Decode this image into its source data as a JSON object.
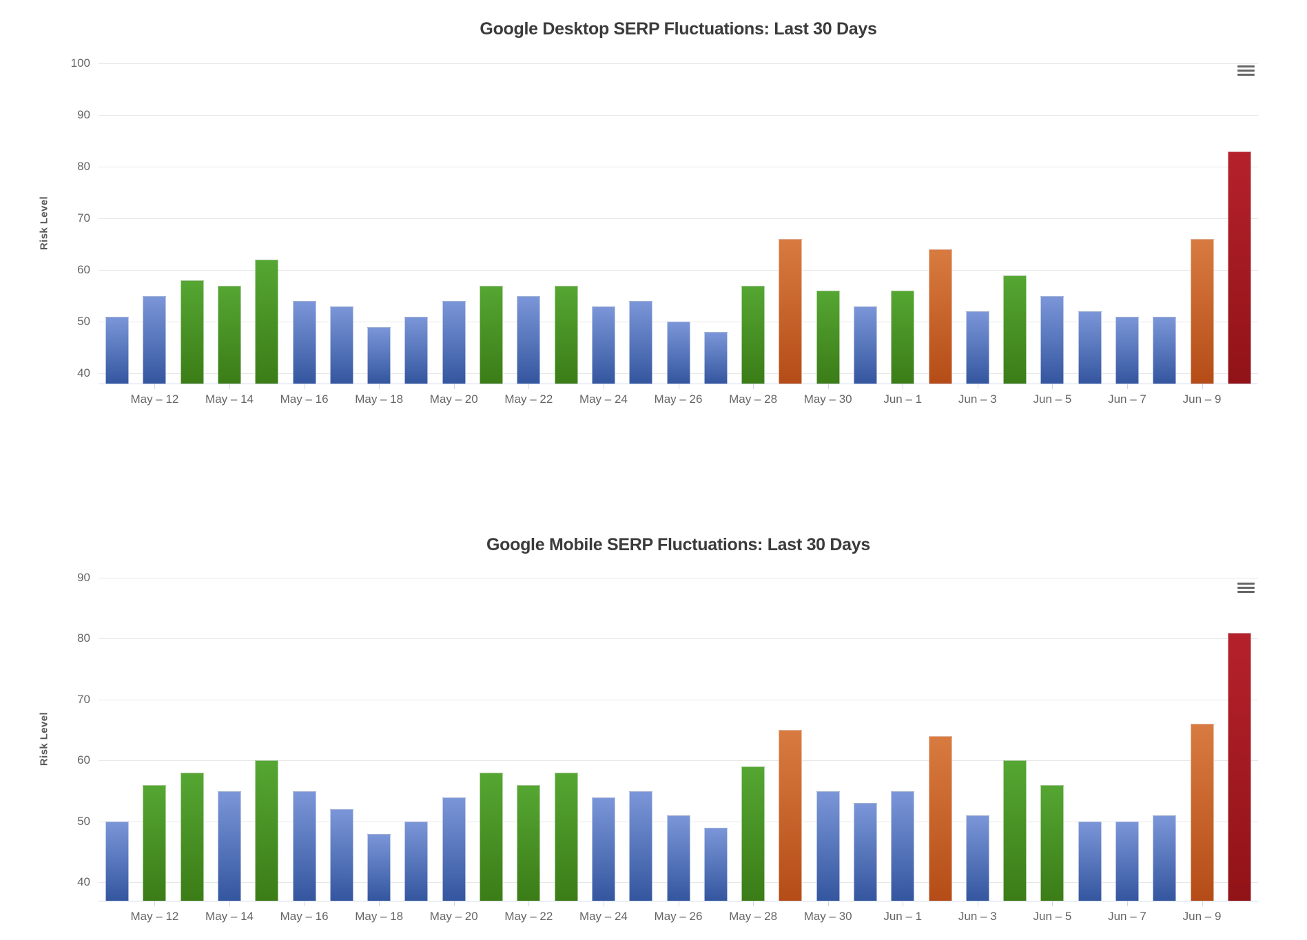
{
  "page": {
    "background": "#ffffff"
  },
  "colors": {
    "blue": {
      "top": "#7b96d8",
      "bottom": "#34569f"
    },
    "green": {
      "top": "#55a632",
      "bottom": "#3b7c17"
    },
    "orange": {
      "top": "#d87b40",
      "bottom": "#b54c17"
    },
    "darkred": {
      "top": "#b5212b",
      "bottom": "#911317"
    }
  },
  "charts": [
    {
      "title": "Google Desktop SERP Fluctuations: Last 30 Days",
      "menu_icon": "hamburger-icon",
      "chart_data": {
        "type": "bar",
        "title": "Google Desktop SERP Fluctuations: Last 30 Days",
        "xlabel": "",
        "ylabel": "Risk Level",
        "ylim": [
          38,
          100
        ],
        "y_ticks": [
          100,
          90,
          80,
          70,
          60,
          50,
          40
        ],
        "grid": true,
        "legend": false,
        "x_tick_labels": [
          "May – 12",
          "May – 14",
          "May – 16",
          "May – 18",
          "May – 20",
          "May – 22",
          "May – 24",
          "May – 26",
          "May – 28",
          "May – 30",
          "Jun – 1",
          "Jun – 3",
          "Jun – 5",
          "Jun – 7",
          "Jun – 9"
        ],
        "x_tick_bar_indices": [
          1,
          3,
          5,
          7,
          9,
          11,
          13,
          15,
          17,
          19,
          21,
          23,
          25,
          27,
          29
        ],
        "values": [
          51,
          55,
          58,
          57,
          62,
          54,
          53,
          49,
          51,
          54,
          57,
          55,
          57,
          53,
          54,
          50,
          48,
          57,
          66,
          56,
          53,
          56,
          64,
          52,
          59,
          55,
          52,
          51,
          51,
          66,
          83
        ],
        "bar_colors": [
          "blue",
          "blue",
          "green",
          "green",
          "green",
          "blue",
          "blue",
          "blue",
          "blue",
          "blue",
          "green",
          "blue",
          "green",
          "blue",
          "blue",
          "blue",
          "blue",
          "green",
          "orange",
          "green",
          "blue",
          "green",
          "orange",
          "blue",
          "green",
          "blue",
          "blue",
          "blue",
          "blue",
          "orange",
          "darkred"
        ]
      }
    },
    {
      "title": "Google Mobile SERP Fluctuations: Last 30 Days",
      "menu_icon": "hamburger-icon",
      "chart_data": {
        "type": "bar",
        "title": "Google Mobile SERP Fluctuations: Last 30 Days",
        "xlabel": "",
        "ylabel": "Risk Level",
        "ylim": [
          37,
          90
        ],
        "y_ticks": [
          90,
          80,
          70,
          60,
          50,
          40
        ],
        "grid": true,
        "legend": false,
        "x_tick_labels": [
          "May – 12",
          "May – 14",
          "May – 16",
          "May – 18",
          "May – 20",
          "May – 22",
          "May – 24",
          "May – 26",
          "May – 28",
          "May – 30",
          "Jun – 1",
          "Jun – 3",
          "Jun – 5",
          "Jun – 7",
          "Jun – 9"
        ],
        "x_tick_bar_indices": [
          1,
          3,
          5,
          7,
          9,
          11,
          13,
          15,
          17,
          19,
          21,
          23,
          25,
          27,
          29
        ],
        "values": [
          50,
          56,
          58,
          55,
          60,
          55,
          52,
          48,
          50,
          54,
          58,
          56,
          58,
          54,
          55,
          51,
          49,
          59,
          65,
          55,
          53,
          55,
          64,
          51,
          60,
          56,
          50,
          50,
          51,
          66,
          81
        ],
        "bar_colors": [
          "blue",
          "green",
          "green",
          "blue",
          "green",
          "blue",
          "blue",
          "blue",
          "blue",
          "blue",
          "green",
          "green",
          "green",
          "blue",
          "blue",
          "blue",
          "blue",
          "green",
          "orange",
          "blue",
          "blue",
          "blue",
          "orange",
          "blue",
          "green",
          "green",
          "blue",
          "blue",
          "blue",
          "orange",
          "darkred"
        ]
      }
    }
  ]
}
